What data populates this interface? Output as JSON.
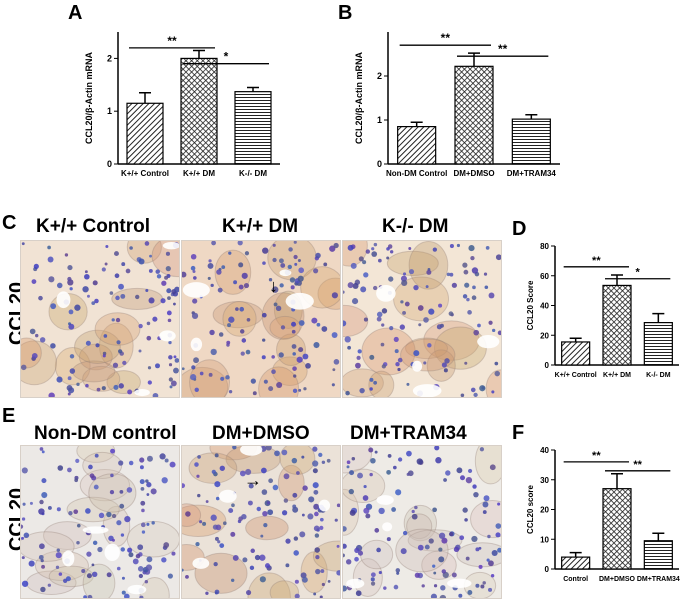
{
  "panels": {
    "A": "A",
    "B": "B",
    "C": "C",
    "D": "D",
    "E": "E",
    "F": "F"
  },
  "micrographs": {
    "row1": {
      "side_label": "CCL20",
      "labels": [
        "K+/+ Control",
        "K+/+ DM",
        "K-/- DM"
      ],
      "tints": [
        "#f1e3d4",
        "#efd8c4",
        "#f3e6d6"
      ]
    },
    "row2": {
      "side_label": "CCL20",
      "labels": [
        "Non-DM control",
        "DM+DMSO",
        "DM+TRAM34"
      ],
      "tints": [
        "#ece9e6",
        "#ebe2d8",
        "#eeebe6"
      ]
    }
  },
  "chart_data": [
    {
      "id": "A",
      "type": "bar",
      "categories": [
        "K+/+ Control",
        "K+/+ DM",
        "K-/- DM"
      ],
      "values": [
        1.15,
        2.0,
        1.37
      ],
      "errors": [
        0.2,
        0.15,
        0.08
      ],
      "patterns": [
        "diag",
        "cross",
        "horiz"
      ],
      "ylabel": "CCL20/β-Actin mRNA",
      "ylim": [
        0,
        2.5
      ],
      "yticks": [
        0,
        1,
        2
      ],
      "sig": [
        {
          "from": 0,
          "to": 1,
          "label": "**",
          "level": 2.2
        },
        {
          "from": 1,
          "to": 2,
          "label": "*",
          "level": 1.9
        }
      ]
    },
    {
      "id": "B",
      "type": "bar",
      "categories": [
        "Non-DM Control",
        "DM+DMSO",
        "DM+TRAM34"
      ],
      "values": [
        0.85,
        2.22,
        1.02
      ],
      "errors": [
        0.1,
        0.3,
        0.1
      ],
      "patterns": [
        "diag",
        "cross",
        "horiz"
      ],
      "ylabel": "CCL20/β-Actin mRNA",
      "ylim": [
        0,
        3
      ],
      "yticks": [
        0,
        1,
        2
      ],
      "sig": [
        {
          "from": 0,
          "to": 1,
          "label": "**",
          "level": 2.7
        },
        {
          "from": 1,
          "to": 2,
          "label": "**",
          "level": 2.45
        }
      ]
    },
    {
      "id": "D",
      "type": "bar",
      "categories": [
        "K+/+ Control",
        "K+/+ DM",
        "K-/- DM"
      ],
      "values": [
        15.5,
        53.5,
        28.5
      ],
      "errors": [
        2.5,
        7,
        6
      ],
      "patterns": [
        "diag",
        "cross",
        "horiz"
      ],
      "ylabel": "CCL20 Score",
      "ylim": [
        0,
        80
      ],
      "yticks": [
        0,
        20,
        40,
        60,
        80
      ],
      "sig": [
        {
          "from": 0,
          "to": 1,
          "label": "**",
          "level": 66
        },
        {
          "from": 1,
          "to": 2,
          "label": "*",
          "level": 58
        }
      ]
    },
    {
      "id": "F",
      "type": "bar",
      "categories": [
        "Control",
        "DM+DMSO",
        "DM+TRAM34"
      ],
      "values": [
        4,
        27,
        9.5
      ],
      "errors": [
        1.5,
        5,
        2.5
      ],
      "patterns": [
        "diag",
        "cross",
        "horiz"
      ],
      "ylabel": "CCL20 score",
      "ylim": [
        0,
        40
      ],
      "yticks": [
        0,
        10,
        20,
        30,
        40
      ],
      "sig": [
        {
          "from": 0,
          "to": 1,
          "label": "**",
          "level": 36
        },
        {
          "from": 1,
          "to": 2,
          "label": "**",
          "level": 33
        }
      ]
    }
  ]
}
